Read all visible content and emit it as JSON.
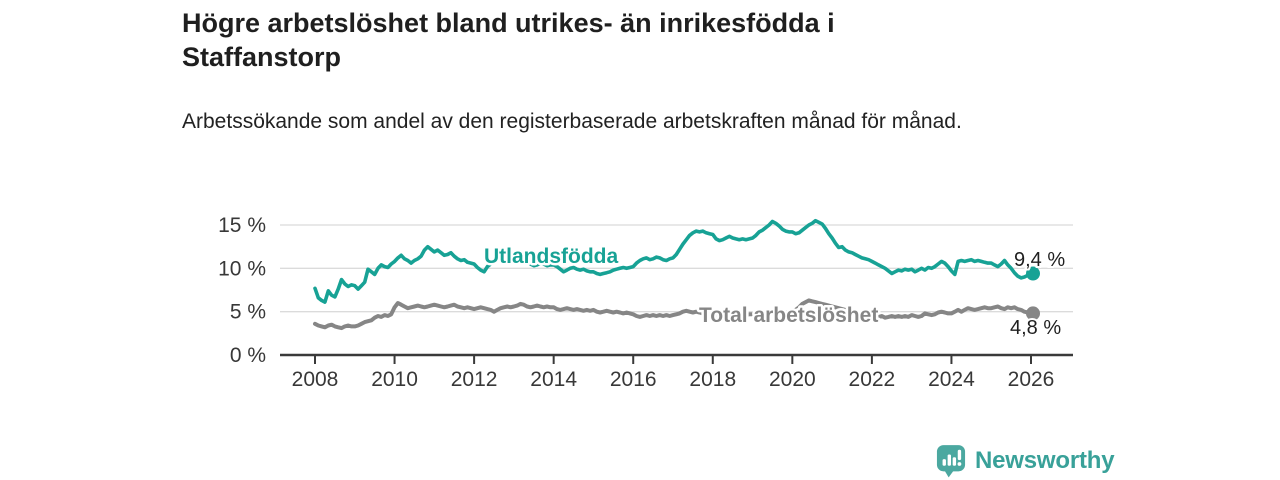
{
  "title": "Högre arbetslöshet bland utrikes- än inrikesfödda i Staffanstorp",
  "subtitle": "Arbetssökande som andel av den registerbaserade arbetskraften månad för månad.",
  "footer": {
    "brand": "Newsworthy",
    "logo_icon": "newsworthy-speech-bubble-barchart-icon"
  },
  "colors": {
    "foreign_line": "#17A295",
    "total_line": "#868686",
    "grid": "#DBDBDB",
    "axis": "#3A3A3A",
    "tick_text": "#383838",
    "value_label": "#1f1f1f",
    "brand_icon": "#4BA8A0",
    "brand_text": "#39A199"
  },
  "chart_data": {
    "type": "line",
    "x_interval": "monthly",
    "x_start": "2008-01",
    "x_end": "2026-01",
    "ylim": [
      0,
      16.2
    ],
    "grid": "horizontal-only",
    "legend_position": "inline-labels",
    "y_ticks": [
      {
        "value": 0,
        "label": "0 %"
      },
      {
        "value": 5,
        "label": "5 %"
      },
      {
        "value": 10,
        "label": "10 %"
      },
      {
        "value": 15,
        "label": "15 %"
      }
    ],
    "x_ticks": [
      {
        "year": 2008,
        "label": "2008"
      },
      {
        "year": 2010,
        "label": "2010"
      },
      {
        "year": 2012,
        "label": "2012"
      },
      {
        "year": 2014,
        "label": "2014"
      },
      {
        "year": 2016,
        "label": "2016"
      },
      {
        "year": 2018,
        "label": "2018"
      },
      {
        "year": 2020,
        "label": "2020"
      },
      {
        "year": 2022,
        "label": "2022"
      },
      {
        "year": 2024,
        "label": "2024"
      },
      {
        "year": 2026,
        "label": "2026"
      }
    ],
    "series": [
      {
        "name": "Utlandsfödda",
        "color_key": "foreign_line",
        "end_label": "9,4 %",
        "end_value": 9.4,
        "values": [
          7.7,
          6.6,
          6.3,
          6.1,
          7.4,
          6.9,
          6.7,
          7.6,
          8.7,
          8.2,
          7.9,
          8.1,
          8.0,
          7.6,
          8.0,
          8.4,
          9.9,
          9.6,
          9.3,
          10.0,
          10.4,
          10.2,
          10.1,
          10.5,
          10.8,
          11.2,
          11.5,
          11.1,
          10.9,
          10.6,
          10.9,
          11.1,
          11.4,
          12.1,
          12.5,
          12.2,
          11.9,
          12.1,
          11.8,
          11.5,
          11.6,
          11.8,
          11.4,
          11.1,
          10.9,
          11.0,
          10.7,
          10.6,
          10.5,
          10.1,
          9.8,
          9.6,
          10.2,
          10.5,
          10.9,
          11.3,
          11.6,
          11.4,
          11.1,
          10.9,
          10.8,
          11.0,
          11.3,
          11.1,
          10.8,
          10.5,
          10.3,
          10.4,
          10.6,
          10.5,
          10.3,
          10.4,
          10.4,
          10.2,
          9.9,
          9.6,
          9.8,
          10.0,
          10.1,
          9.9,
          9.8,
          9.9,
          9.7,
          9.6,
          9.6,
          9.4,
          9.3,
          9.4,
          9.5,
          9.6,
          9.8,
          9.9,
          10.0,
          10.1,
          10.0,
          10.1,
          10.2,
          10.6,
          10.9,
          11.1,
          11.2,
          11.0,
          11.1,
          11.3,
          11.2,
          11.0,
          10.9,
          11.1,
          11.2,
          11.6,
          12.2,
          12.8,
          13.3,
          13.8,
          14.1,
          14.3,
          14.2,
          14.3,
          14.1,
          14.0,
          13.9,
          13.4,
          13.2,
          13.3,
          13.5,
          13.7,
          13.5,
          13.4,
          13.3,
          13.4,
          13.3,
          13.4,
          13.5,
          13.8,
          14.2,
          14.4,
          14.7,
          15.0,
          15.4,
          15.2,
          14.9,
          14.5,
          14.3,
          14.2,
          14.2,
          14.0,
          14.1,
          14.4,
          14.7,
          15.0,
          15.2,
          15.5,
          15.3,
          15.1,
          14.6,
          14.0,
          13.5,
          12.9,
          12.4,
          12.5,
          12.1,
          11.9,
          11.8,
          11.6,
          11.4,
          11.2,
          11.1,
          11.0,
          10.8,
          10.6,
          10.4,
          10.2,
          10.0,
          9.7,
          9.4,
          9.6,
          9.8,
          9.7,
          9.9,
          9.8,
          9.9,
          9.6,
          9.8,
          10.0,
          9.8,
          10.1,
          10.0,
          10.2,
          10.5,
          10.8,
          10.6,
          10.2,
          9.7,
          9.3,
          10.8,
          10.9,
          10.8,
          10.9,
          11.0,
          10.8,
          10.9,
          10.8,
          10.7,
          10.6,
          10.6,
          10.4,
          10.2,
          10.5,
          10.9,
          10.4,
          10.0,
          9.5,
          9.1,
          8.9,
          9.0,
          9.2,
          9.4
        ]
      },
      {
        "name": "Total arbetslöshet",
        "color_key": "total_line",
        "end_label": "4,8 %",
        "end_value": 4.8,
        "values": [
          3.6,
          3.4,
          3.3,
          3.2,
          3.4,
          3.5,
          3.3,
          3.2,
          3.1,
          3.3,
          3.4,
          3.3,
          3.3,
          3.4,
          3.6,
          3.8,
          3.9,
          4.0,
          4.3,
          4.5,
          4.4,
          4.6,
          4.5,
          4.7,
          5.5,
          6.0,
          5.8,
          5.6,
          5.4,
          5.5,
          5.6,
          5.7,
          5.6,
          5.5,
          5.6,
          5.7,
          5.8,
          5.7,
          5.6,
          5.5,
          5.6,
          5.7,
          5.8,
          5.6,
          5.5,
          5.4,
          5.5,
          5.4,
          5.3,
          5.4,
          5.5,
          5.4,
          5.3,
          5.2,
          5.0,
          5.2,
          5.4,
          5.5,
          5.6,
          5.5,
          5.6,
          5.7,
          5.9,
          5.8,
          5.6,
          5.5,
          5.6,
          5.7,
          5.6,
          5.5,
          5.6,
          5.5,
          5.5,
          5.3,
          5.2,
          5.3,
          5.4,
          5.3,
          5.2,
          5.3,
          5.2,
          5.1,
          5.2,
          5.1,
          5.2,
          5.0,
          4.9,
          5.0,
          5.1,
          5.0,
          4.9,
          5.0,
          4.9,
          4.8,
          4.9,
          4.8,
          4.7,
          4.5,
          4.4,
          4.5,
          4.6,
          4.5,
          4.6,
          4.5,
          4.6,
          4.5,
          4.6,
          4.5,
          4.6,
          4.7,
          4.8,
          5.0,
          5.1,
          5.0,
          4.9,
          5.0,
          4.9,
          4.8,
          4.9,
          4.8,
          4.8,
          4.7,
          4.6,
          4.7,
          4.8,
          4.7,
          4.6,
          4.7,
          4.6,
          4.7,
          4.6,
          4.7,
          4.7,
          4.8,
          4.9,
          4.8,
          4.9,
          5.0,
          4.9,
          5.0,
          4.9,
          5.0,
          4.9,
          5.0,
          5.1,
          5.2,
          5.5,
          5.9,
          6.1,
          6.3,
          6.2,
          6.1,
          6.0,
          5.9,
          5.8,
          5.7,
          5.6,
          5.5,
          5.4,
          5.3,
          5.2,
          5.1,
          5.0,
          4.9,
          4.8,
          4.7,
          4.8,
          4.7,
          4.6,
          4.5,
          4.4,
          4.5,
          4.3,
          4.4,
          4.5,
          4.4,
          4.5,
          4.4,
          4.5,
          4.4,
          4.6,
          4.5,
          4.4,
          4.5,
          4.8,
          4.7,
          4.6,
          4.7,
          4.9,
          5.0,
          4.9,
          4.8,
          4.8,
          5.0,
          5.2,
          5.0,
          5.2,
          5.4,
          5.3,
          5.2,
          5.3,
          5.4,
          5.5,
          5.4,
          5.4,
          5.5,
          5.6,
          5.4,
          5.3,
          5.5,
          5.4,
          5.5,
          5.3,
          5.2,
          5.0,
          4.9,
          4.8
        ]
      }
    ]
  }
}
